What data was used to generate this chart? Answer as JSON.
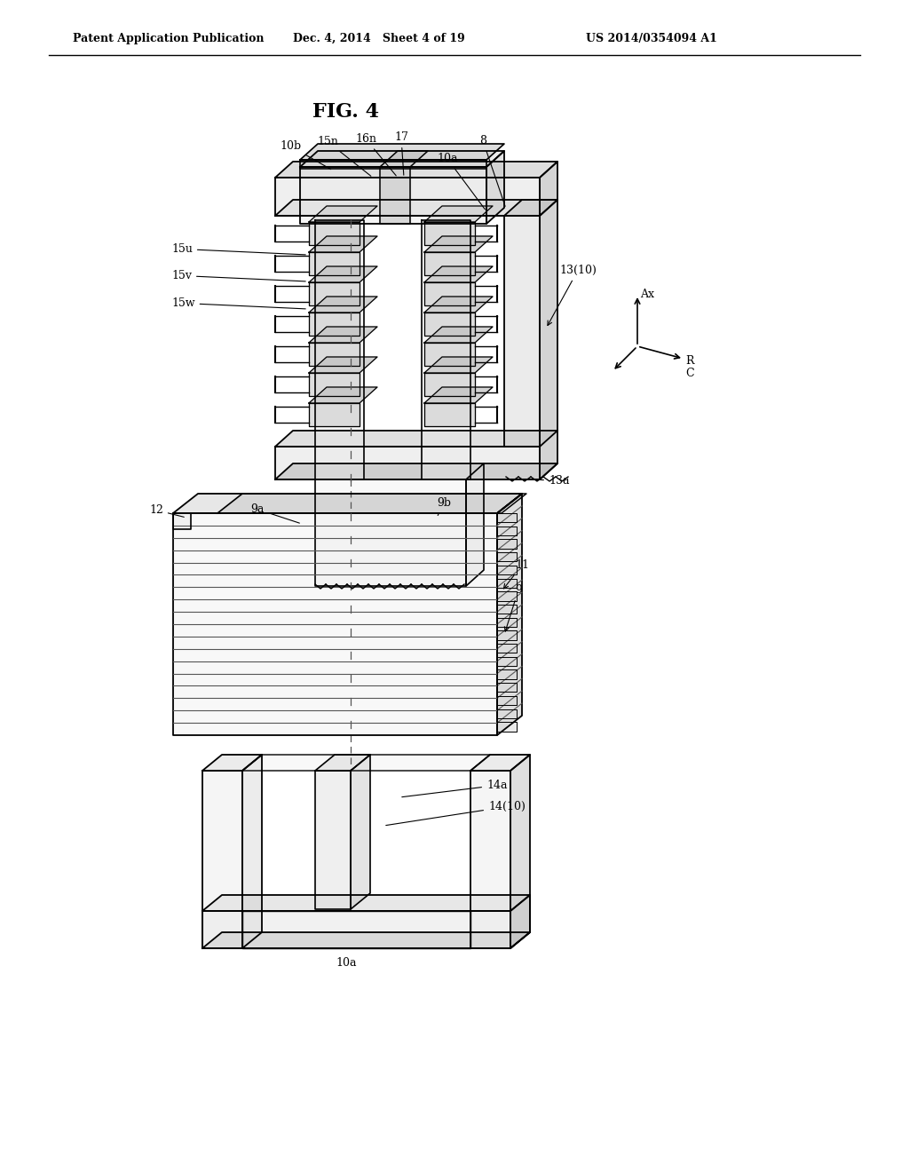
{
  "title": "FIG. 4",
  "header_left": "Patent Application Publication",
  "header_mid": "Dec. 4, 2014   Sheet 4 of 19",
  "header_right": "US 2014/0354094 A1",
  "bg_color": "#ffffff",
  "line_color": "#000000"
}
